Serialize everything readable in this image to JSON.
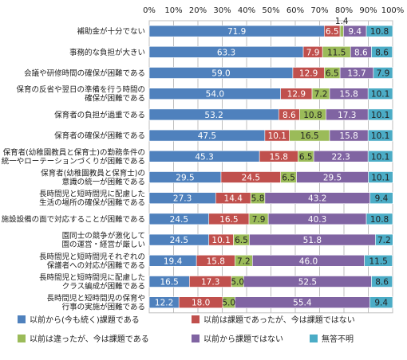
{
  "chart_data": {
    "type": "bar",
    "orientation": "horizontal",
    "stacked": true,
    "xlim": [
      0,
      100
    ],
    "x_ticks": [
      "0%",
      "10%",
      "20%",
      "30%",
      "40%",
      "50%",
      "60%",
      "70%",
      "80%",
      "90%",
      "100%"
    ],
    "grid": true,
    "legend_position": "bottom",
    "categories": [
      [
        "補助金が十分でない"
      ],
      [
        "事務的な負担が大きい"
      ],
      [
        "会議や研修時間の確保が困難である"
      ],
      [
        "保育の反省や翌日の準備を行う時間の",
        "確保が困難である"
      ],
      [
        "保育者の負担が過重である"
      ],
      [
        "保育者の確保が困難である"
      ],
      [
        "保育者(幼稚園教員と保育士)の勤務条件の",
        "統一やローテーションづくりが困難である"
      ],
      [
        "保育者(幼稚園教員と保育士)の",
        "意識の統一が困難である"
      ],
      [
        "長時間児と短時間児に配慮した",
        "生活の場所の確保が困難である"
      ],
      [
        "施設設備の面で対応することが困難である"
      ],
      [
        "園同士の競争が激化して",
        "園の運営・経営が厳しい"
      ],
      [
        "長時間児と短時間児それぞれの",
        "保護者への対応が困難である"
      ],
      [
        "長時間児と短時間児に配慮した",
        "クラス編成が困難である"
      ],
      [
        "長時間児と短時間児の保育や",
        "行事の実施が困難である"
      ]
    ],
    "series": [
      {
        "name": "以前から(今も続く)課題である",
        "color": "#4f81bd",
        "label_color": "#ffffff",
        "values": [
          71.9,
          63.3,
          59.0,
          54.0,
          53.2,
          47.5,
          45.3,
          29.5,
          27.3,
          24.5,
          24.5,
          19.4,
          16.5,
          12.2
        ]
      },
      {
        "name": "以前は課題であったが、今は課題ではない",
        "color": "#c0504d",
        "label_color": "#ffffff",
        "values": [
          6.5,
          7.9,
          12.9,
          12.9,
          8.6,
          10.1,
          15.8,
          24.5,
          14.4,
          16.5,
          10.1,
          15.8,
          17.3,
          18.0
        ]
      },
      {
        "name": "以前は違ったが、今は課題である",
        "color": "#9bbb59",
        "label_color": "#222222",
        "values": [
          1.4,
          11.5,
          6.5,
          7.2,
          10.8,
          16.5,
          6.5,
          6.5,
          5.8,
          7.9,
          6.5,
          7.2,
          5.0,
          5.0
        ]
      },
      {
        "name": "以前から課題ではない",
        "color": "#8064a2",
        "label_color": "#ffffff",
        "values": [
          9.4,
          8.6,
          13.7,
          15.8,
          17.3,
          15.8,
          22.3,
          29.5,
          43.2,
          40.3,
          51.8,
          46.0,
          52.5,
          55.4
        ]
      },
      {
        "name": "無答不明",
        "color": "#4bacc6",
        "label_color": "#222222",
        "values": [
          10.8,
          8.6,
          7.9,
          10.1,
          10.1,
          10.1,
          10.1,
          10.1,
          9.4,
          10.8,
          7.2,
          11.5,
          8.6,
          9.4
        ]
      }
    ],
    "value_labels": [
      [
        "71.9",
        "6.5",
        "1.4",
        "9.4",
        "10.8"
      ],
      [
        "63.3",
        "7.9",
        "11.5",
        "8.6",
        "8.6"
      ],
      [
        "59.0",
        "12.9",
        "6.5",
        "13.7",
        "7.9"
      ],
      [
        "54.0",
        "12.9",
        "7.2",
        "15.8",
        "10.1"
      ],
      [
        "53.2",
        "8.6",
        "10.8",
        "17.3",
        "10.1"
      ],
      [
        "47.5",
        "10.1",
        "16.5",
        "15.8",
        "10.1"
      ],
      [
        "45.3",
        "15.8",
        "6.5",
        "22.3",
        "10.1"
      ],
      [
        "29.5",
        "24.5",
        "6.5",
        "29.5",
        "10.1"
      ],
      [
        "27.3",
        "14.4",
        "5.8",
        "43.2",
        "9.4"
      ],
      [
        "24.5",
        "16.5",
        "7.9",
        "40.3",
        "10.8"
      ],
      [
        "24.5",
        "10.1",
        "6.5",
        "51.8",
        "7.2"
      ],
      [
        "19.4",
        "15.8",
        "7.2",
        "46.0",
        "11.5"
      ],
      [
        "16.5",
        "17.3",
        "5.0",
        "52.5",
        "8.6"
      ],
      [
        "12.2",
        "18.0",
        "5.0",
        "55.4",
        "9.4"
      ]
    ]
  }
}
